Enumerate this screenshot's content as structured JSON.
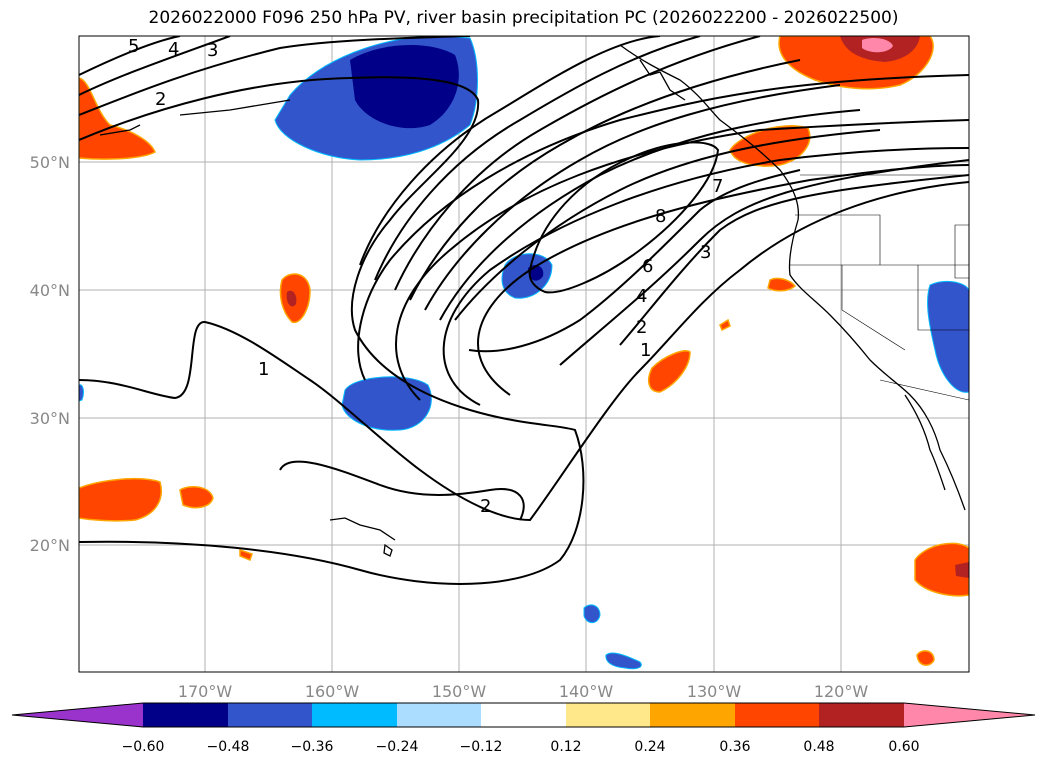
{
  "title": "2026022000 F096 250 hPa PV, river basin precipitation PC (2026022200 - 2026022500)",
  "lat_labels": [
    "50°N",
    "40°N",
    "30°N",
    "20°N"
  ],
  "lon_labels": [
    "170°W",
    "160°W",
    "150°W",
    "140°W",
    "130°W",
    "120°W"
  ],
  "colorbar": {
    "ticks": [
      "−0.60",
      "−0.48",
      "−0.36",
      "−0.24",
      "−0.12",
      "0.12",
      "0.24",
      "0.36",
      "0.48",
      "0.60"
    ],
    "colors": [
      "#9933cc",
      "#000088",
      "#3355cc",
      "#00bbff",
      "#aaddff",
      "#ffffff",
      "#ffe88a",
      "#ffa500",
      "#ff4500",
      "#b22222",
      "#ff88aa",
      "#ff88aa"
    ]
  },
  "pv_contour_labels": [
    "5",
    "4",
    "3",
    "2",
    "1",
    "2",
    "8",
    "7",
    "6",
    "4",
    "2",
    "1",
    "3"
  ]
}
